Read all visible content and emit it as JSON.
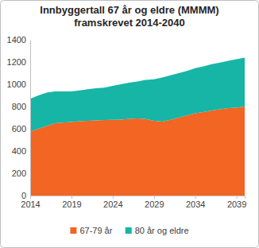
{
  "chart_data": {
    "type": "area",
    "stacked": true,
    "title": [
      "Innbyggertall 67 år og eldre (MMMM)",
      "framskrevet  2014-2040"
    ],
    "x": [
      2014,
      2015,
      2016,
      2017,
      2018,
      2019,
      2020,
      2021,
      2022,
      2023,
      2024,
      2025,
      2026,
      2027,
      2028,
      2029,
      2030,
      2031,
      2032,
      2033,
      2034,
      2035,
      2036,
      2037,
      2038,
      2039,
      2040
    ],
    "series": [
      {
        "name": "67-79 år",
        "color": "#f26522",
        "values": [
          575,
          600,
          625,
          650,
          655,
          660,
          668,
          672,
          675,
          678,
          680,
          682,
          690,
          692,
          688,
          672,
          665,
          680,
          700,
          720,
          740,
          750,
          765,
          775,
          785,
          790,
          800
        ]
      },
      {
        "name": "80 år og eldre",
        "color": "#17b5a6",
        "values": [
          295,
          300,
          300,
          285,
          280,
          275,
          277,
          283,
          290,
          292,
          305,
          318,
          325,
          333,
          352,
          373,
          395,
          400,
          400,
          400,
          405,
          410,
          415,
          420,
          425,
          435,
          440
        ]
      }
    ],
    "xlim": [
      2014,
      2040
    ],
    "xticks": [
      2014,
      2019,
      2024,
      2029,
      2034,
      2039
    ],
    "ylim": [
      0,
      1400
    ],
    "yticks": [
      0,
      200,
      400,
      600,
      800,
      1000,
      1200,
      1400
    ],
    "grid": false,
    "legend": "bottom"
  }
}
